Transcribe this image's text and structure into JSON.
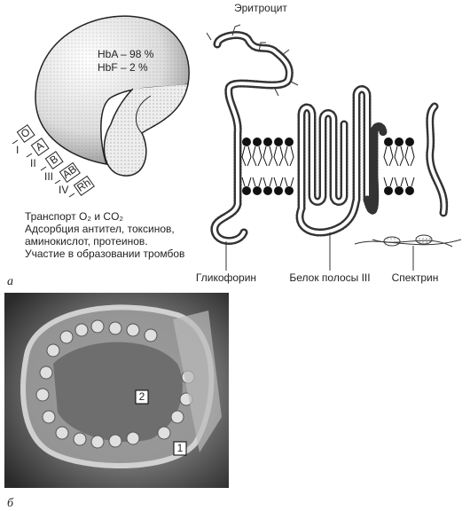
{
  "title": "Эритроцит",
  "hemoglobin": [
    "HbA – 98 %",
    "HbF – 2 %"
  ],
  "blood_groups": [
    {
      "label": "O",
      "numeral": "I"
    },
    {
      "label": "A",
      "numeral": "II"
    },
    {
      "label": "B",
      "numeral": "III"
    },
    {
      "label": "AB",
      "numeral": "IV"
    },
    {
      "label": "Rh"
    }
  ],
  "functions": [
    "Транспорт O₂ и CO₂",
    "Адсорбция антител, токсинов,",
    "аминокислот, протеинов.",
    "Участие в образовании тромбов"
  ],
  "panels": [
    "а",
    "б"
  ],
  "proteins": [
    "Гликофорин",
    "Белок полосы III",
    "Спектрин"
  ],
  "micrograph_labels": [
    "2",
    "1"
  ]
}
